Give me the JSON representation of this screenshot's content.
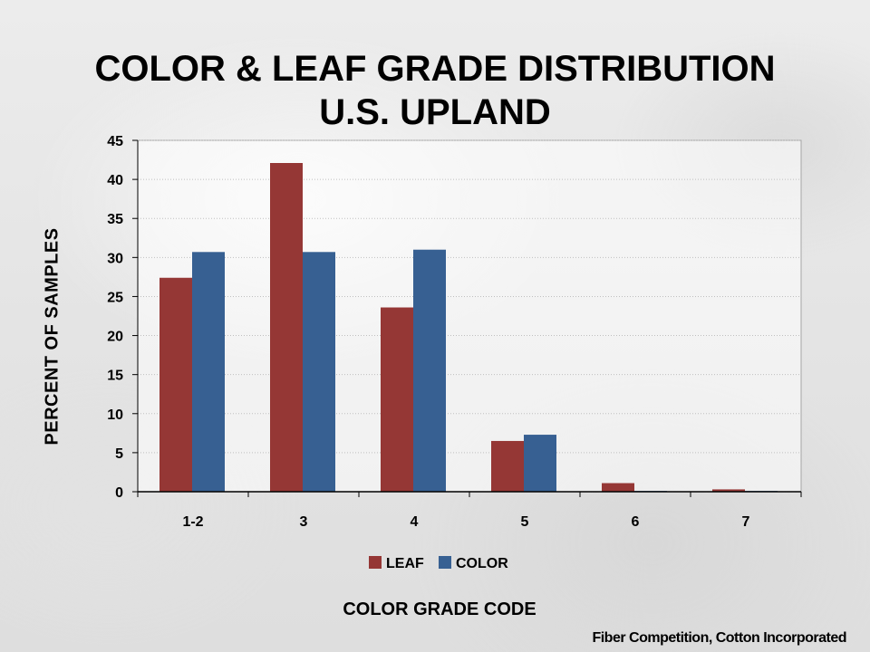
{
  "slide": {
    "title_line1": "COLOR & LEAF GRADE DISTRIBUTION",
    "title_line2": "U.S. UPLAND",
    "source": "Fiber Competition, Cotton Incorporated"
  },
  "chart_data": {
    "type": "bar",
    "categories": [
      "1-2",
      "3",
      "4",
      "5",
      "6",
      "7"
    ],
    "series": [
      {
        "name": "LEAF",
        "color": "#953735",
        "values": [
          27.4,
          42.1,
          23.6,
          6.5,
          1.1,
          0.3
        ]
      },
      {
        "name": "COLOR",
        "color": "#376092",
        "values": [
          30.7,
          30.7,
          31.0,
          7.3,
          0.1,
          0.1
        ]
      }
    ],
    "xlabel": "COLOR GRADE CODE",
    "ylabel": "PERCENT OF SAMPLES",
    "ylim": [
      0,
      45
    ],
    "yticks": [
      0,
      5,
      10,
      15,
      20,
      25,
      30,
      35,
      40,
      45
    ],
    "grid": true,
    "legend": "bottom"
  }
}
